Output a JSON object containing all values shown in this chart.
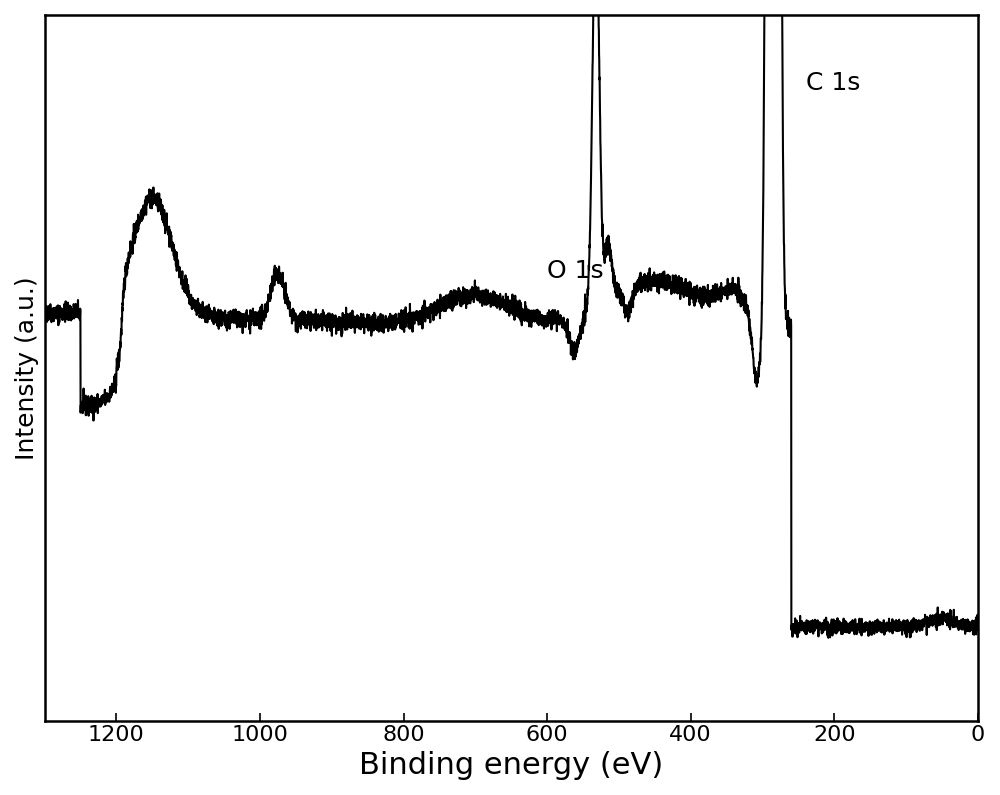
{
  "xlabel": "Binding energy (eV)",
  "ylabel": "Intensity (a.u.)",
  "label_C1s": "C 1s",
  "label_O1s": "O 1s",
  "xlim": [
    1300,
    0
  ],
  "xticks": [
    1200,
    1000,
    800,
    600,
    400,
    200,
    0
  ],
  "line_color": "#000000",
  "background_color": "#ffffff",
  "xlabel_fontsize": 22,
  "ylabel_fontsize": 18,
  "annotation_fontsize": 18,
  "tick_fontsize": 16,
  "linewidth": 1.5
}
